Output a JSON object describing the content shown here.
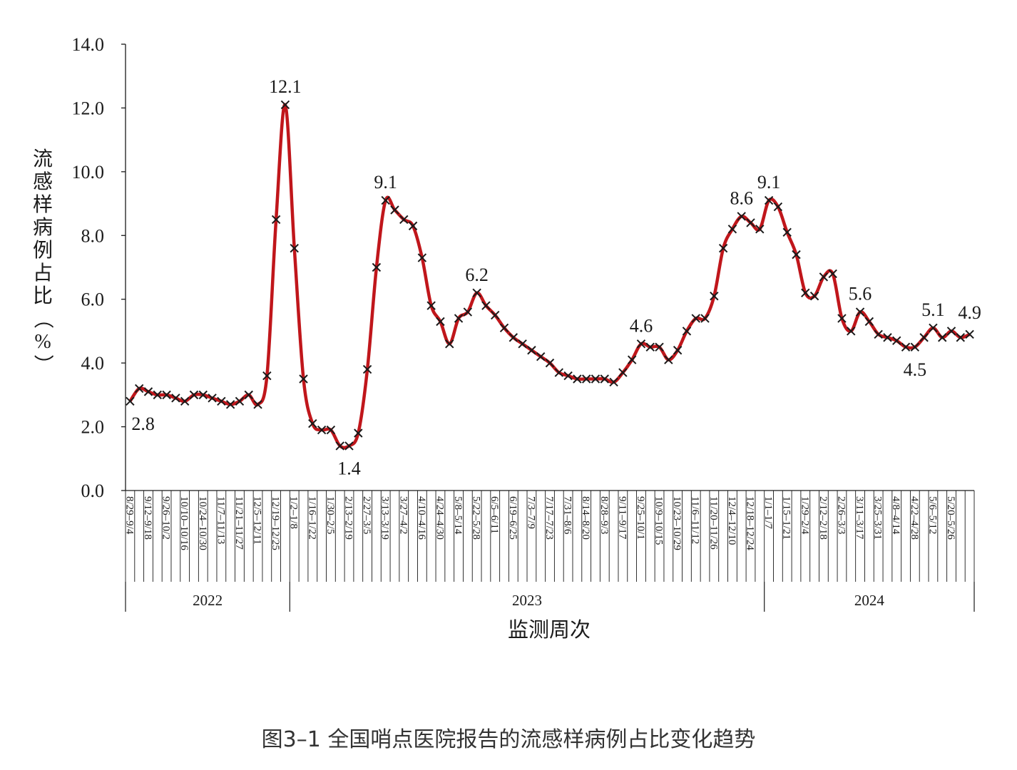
{
  "caption": "图3–1 全国哨点医院报告的流感样病例占比变化趋势",
  "chart_data": {
    "type": "line",
    "title": "",
    "xlabel": "监测周次",
    "ylabel": "流感样病例占比（%）",
    "ylim": [
      0,
      14
    ],
    "y_ticks": [
      "0.0",
      "2.0",
      "4.0",
      "6.0",
      "8.0",
      "10.0",
      "12.0",
      "14.0"
    ],
    "grid": false,
    "legend": "none",
    "line_color": "#c0161b",
    "marker": "x",
    "marker_color": "#1a1a1a",
    "series": [
      {
        "values": [
          2.8,
          3.2,
          3.1,
          3.0,
          3.0,
          2.9,
          2.8,
          3.0,
          3.0,
          2.9,
          2.8,
          2.7,
          2.8,
          3.0,
          2.7,
          3.6,
          8.5,
          12.1,
          7.6,
          3.5,
          2.1,
          1.9,
          1.9,
          1.4,
          1.4,
          1.8,
          3.8,
          7.0,
          9.1,
          8.8,
          8.5,
          8.3,
          7.3,
          5.8,
          5.3,
          4.6,
          5.4,
          5.6,
          6.2,
          5.8,
          5.5,
          5.1,
          4.8,
          4.6,
          4.4,
          4.2,
          4.0,
          3.7,
          3.6,
          3.5,
          3.5,
          3.5,
          3.5,
          3.4,
          3.7,
          4.1,
          4.6,
          4.5,
          4.5,
          4.1,
          4.4,
          5.0,
          5.4,
          5.4,
          6.1,
          7.6,
          8.2,
          8.6,
          8.4,
          8.2,
          9.1,
          8.9,
          8.1,
          7.4,
          6.2,
          6.1,
          6.7,
          6.8,
          5.4,
          5.0,
          5.6,
          5.3,
          4.9,
          4.8,
          4.7,
          4.5,
          4.5,
          4.8,
          5.1,
          4.8,
          5.0,
          4.8,
          4.9
        ]
      }
    ],
    "data_labels": [
      {
        "index": 0,
        "text": "2.8",
        "pos": "below"
      },
      {
        "index": 17,
        "text": "12.1",
        "pos": "above"
      },
      {
        "index": 24,
        "text": "1.4",
        "pos": "below"
      },
      {
        "index": 28,
        "text": "9.1",
        "pos": "above"
      },
      {
        "index": 38,
        "text": "6.2",
        "pos": "above"
      },
      {
        "index": 56,
        "text": "4.6",
        "pos": "above"
      },
      {
        "index": 67,
        "text": "8.6",
        "pos": "above"
      },
      {
        "index": 70,
        "text": "9.1",
        "pos": "above"
      },
      {
        "index": 80,
        "text": "5.6",
        "pos": "above"
      },
      {
        "index": 86,
        "text": "4.5",
        "pos": "below"
      },
      {
        "index": 88,
        "text": "5.1",
        "pos": "above"
      },
      {
        "index": 92,
        "text": "4.9",
        "pos": "above"
      }
    ],
    "x_tick_labels": [
      {
        "index": 0,
        "text": "8/29–9/4"
      },
      {
        "index": 2,
        "text": "9/12–9/18"
      },
      {
        "index": 4,
        "text": "9/26–10/2"
      },
      {
        "index": 6,
        "text": "10/10–10/16"
      },
      {
        "index": 8,
        "text": "10/24–10/30"
      },
      {
        "index": 10,
        "text": "11/7–11/13"
      },
      {
        "index": 12,
        "text": "11/21–11/27"
      },
      {
        "index": 14,
        "text": "12/5–12/11"
      },
      {
        "index": 16,
        "text": "12/19–12/25"
      },
      {
        "index": 18,
        "text": "1/2–1/8"
      },
      {
        "index": 20,
        "text": "1/16–1/22"
      },
      {
        "index": 22,
        "text": "1/30–2/5"
      },
      {
        "index": 24,
        "text": "2/13–2/19"
      },
      {
        "index": 26,
        "text": "2/27–3/5"
      },
      {
        "index": 28,
        "text": "3/13–3/19"
      },
      {
        "index": 30,
        "text": "3/27–4/2"
      },
      {
        "index": 32,
        "text": "4/10–4/16"
      },
      {
        "index": 34,
        "text": "4/24–4/30"
      },
      {
        "index": 36,
        "text": "5/8–5/14"
      },
      {
        "index": 38,
        "text": "5/22–5/28"
      },
      {
        "index": 40,
        "text": "6/5–6/11"
      },
      {
        "index": 42,
        "text": "6/19–6/25"
      },
      {
        "index": 44,
        "text": "7/3–7/9"
      },
      {
        "index": 46,
        "text": "7/17–7/23"
      },
      {
        "index": 48,
        "text": "7/31–8/6"
      },
      {
        "index": 50,
        "text": "8/14–8/20"
      },
      {
        "index": 52,
        "text": "8/28–9/3"
      },
      {
        "index": 54,
        "text": "9/11–9/17"
      },
      {
        "index": 56,
        "text": "9/25–10/1"
      },
      {
        "index": 58,
        "text": "10/9–10/15"
      },
      {
        "index": 60,
        "text": "10/23–10/29"
      },
      {
        "index": 62,
        "text": "11/6–11/12"
      },
      {
        "index": 64,
        "text": "11/20–11/26"
      },
      {
        "index": 66,
        "text": "12/4–12/10"
      },
      {
        "index": 68,
        "text": "12/18–12/24"
      },
      {
        "index": 70,
        "text": "1/1–1/7"
      },
      {
        "index": 72,
        "text": "1/15–1/21"
      },
      {
        "index": 74,
        "text": "1/29–2/4"
      },
      {
        "index": 76,
        "text": "2/12–2/18"
      },
      {
        "index": 78,
        "text": "2/26–3/3"
      },
      {
        "index": 80,
        "text": "3/11–3/17"
      },
      {
        "index": 82,
        "text": "3/25–3/31"
      },
      {
        "index": 84,
        "text": "4/8–4/14"
      },
      {
        "index": 86,
        "text": "4/22–4/28"
      },
      {
        "index": 88,
        "text": "5/6–5/12"
      },
      {
        "index": 90,
        "text": "5/20–5/26"
      }
    ],
    "year_groups": [
      {
        "label": "2022",
        "start": 0,
        "end": 17
      },
      {
        "label": "2023",
        "start": 18,
        "end": 69
      },
      {
        "label": "2024",
        "start": 70,
        "end": 92
      }
    ]
  }
}
